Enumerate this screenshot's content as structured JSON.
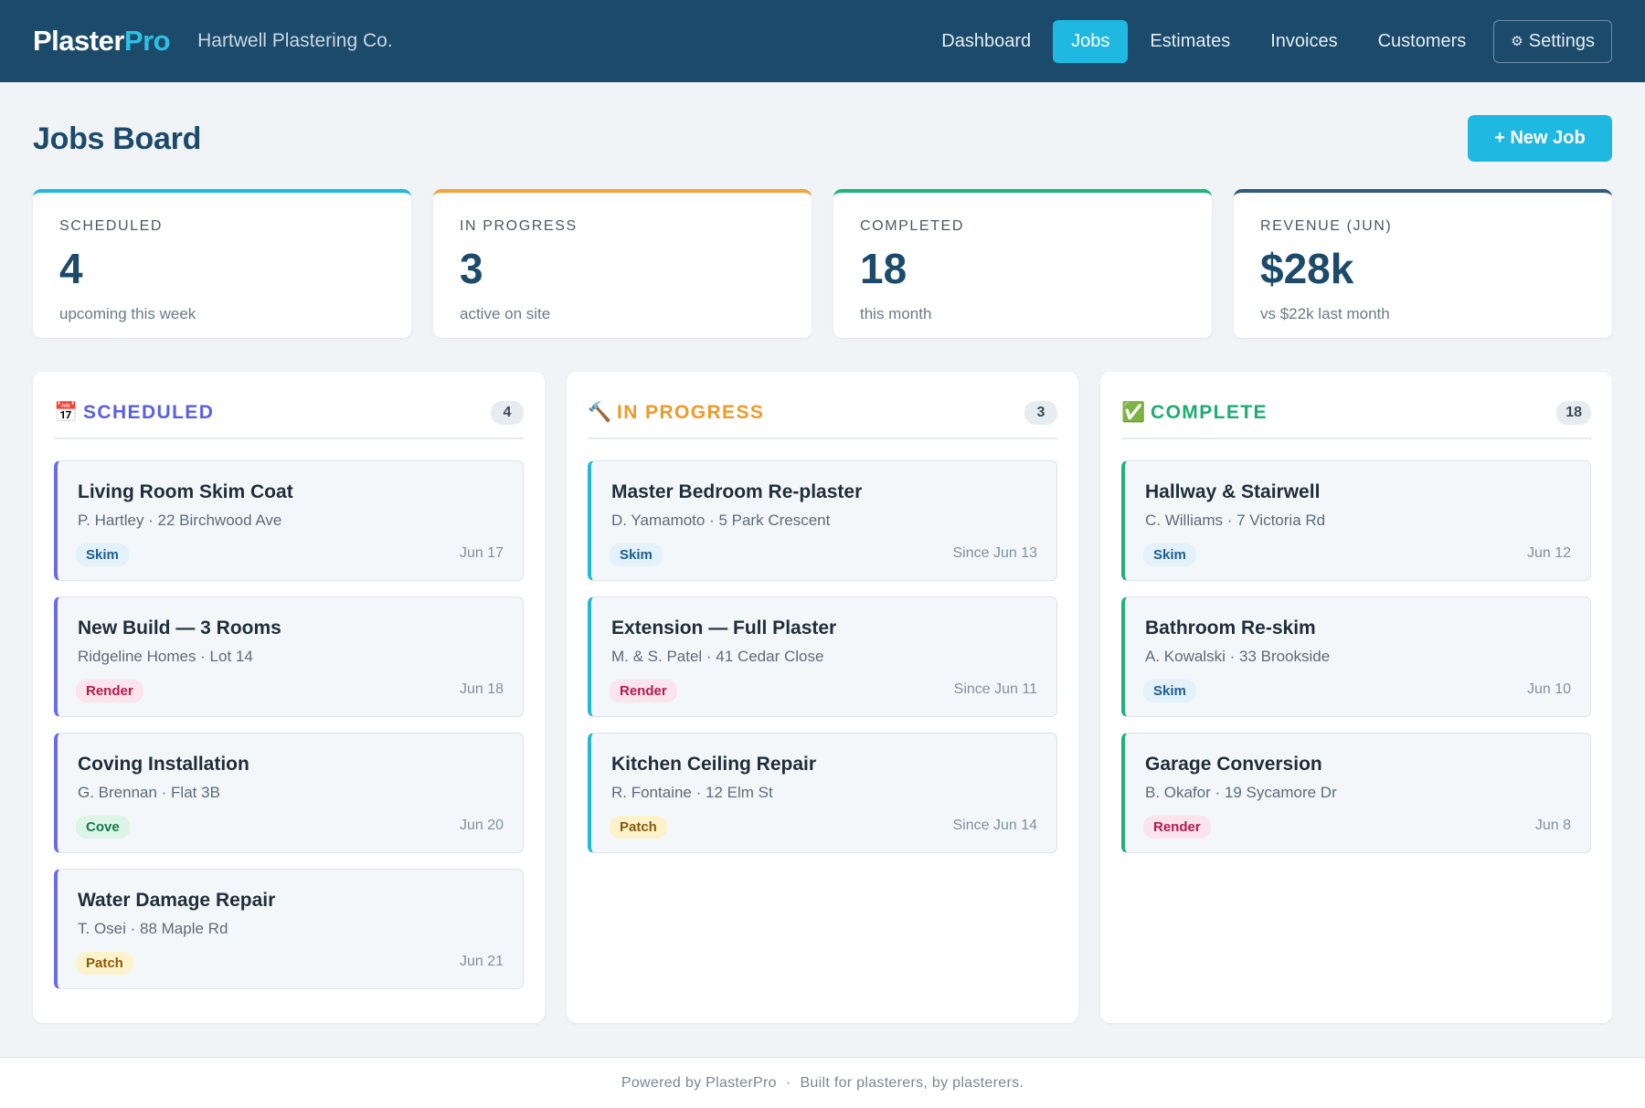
{
  "app": {
    "logo_main": "Plaster",
    "logo_accent": "Pro",
    "company": "Hartwell Plastering Co."
  },
  "nav": {
    "items": [
      "Dashboard",
      "Jobs",
      "Estimates",
      "Invoices",
      "Customers"
    ],
    "active": "Jobs",
    "settings_label": "Settings",
    "settings_icon": "gear-icon"
  },
  "page": {
    "title": "Jobs Board",
    "new_job_label": "+ New Job"
  },
  "stats": [
    {
      "label": "SCHEDULED",
      "value": "4",
      "sub": "upcoming this week",
      "accent": "#1fb8e0"
    },
    {
      "label": "IN PROGRESS",
      "value": "3",
      "sub": "active on site",
      "accent": "#f2a33a"
    },
    {
      "label": "COMPLETED",
      "value": "18",
      "sub": "this month",
      "accent": "#1fb47a"
    },
    {
      "label": "REVENUE (JUN)",
      "value": "$28k",
      "sub": "vs $22k last month",
      "accent": "#2e5b80"
    }
  ],
  "columns": [
    {
      "title": "SCHEDULED",
      "icon": "calendar-icon",
      "count": "4",
      "color": "#5a5fe0",
      "cards": [
        {
          "title": "Living Room Skim Coat",
          "meta": "P. Hartley · 22 Birchwood Ave",
          "tag": "Skim",
          "date": "Jun 17"
        },
        {
          "title": "New Build — 3 Rooms",
          "meta": "Ridgeline Homes · Lot 14",
          "tag": "Render",
          "date": "Jun 18"
        },
        {
          "title": "Coving Installation",
          "meta": "G. Brennan · Flat 3B",
          "tag": "Cove",
          "date": "Jun 20"
        },
        {
          "title": "Water Damage Repair",
          "meta": "T. Osei · 88 Maple Rd",
          "tag": "Patch",
          "date": "Jun 21"
        }
      ]
    },
    {
      "title": "IN PROGRESS",
      "icon": "hammer-icon",
      "count": "3",
      "color": "#ef9a26",
      "cards": [
        {
          "title": "Master Bedroom Re-plaster",
          "meta": "D. Yamamoto · 5 Park Crescent",
          "tag": "Skim",
          "date": "Since Jun 13"
        },
        {
          "title": "Extension — Full Plaster",
          "meta": "M. & S. Patel · 41 Cedar Close",
          "tag": "Render",
          "date": "Since Jun 11"
        },
        {
          "title": "Kitchen Ceiling Repair",
          "meta": "R. Fontaine · 12 Elm St",
          "tag": "Patch",
          "date": "Since Jun 14"
        }
      ]
    },
    {
      "title": "COMPLETE",
      "icon": "check-icon",
      "count": "18",
      "color": "#1aae6f",
      "cards": [
        {
          "title": "Hallway & Stairwell",
          "meta": "C. Williams · 7 Victoria Rd",
          "tag": "Skim",
          "date": "Jun 12"
        },
        {
          "title": "Bathroom Re-skim",
          "meta": "A. Kowalski · 33 Brookside",
          "tag": "Skim",
          "date": "Jun 10"
        },
        {
          "title": "Garage Conversion",
          "meta": "B. Okafor · 19 Sycamore Dr",
          "tag": "Render",
          "date": "Jun 8"
        }
      ]
    }
  ],
  "card_border_colors": [
    "#6a6ee6",
    "#27b7d6",
    "#25b07a"
  ],
  "footer": {
    "left": "Powered by PlasterPro",
    "separator": "·",
    "right": "Built for plasterers, by plasterers."
  }
}
